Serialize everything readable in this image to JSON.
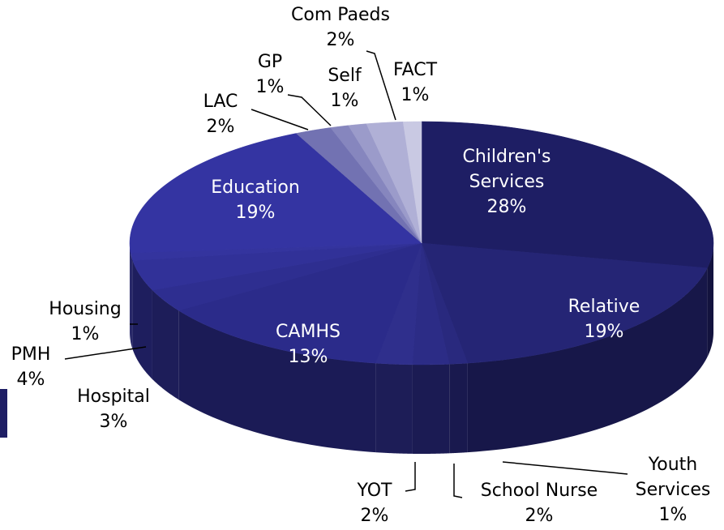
{
  "chart_data": {
    "type": "pie",
    "categories": [
      "Children's Services",
      "Relative",
      "Youth Services",
      "School Nurse",
      "YOT",
      "CAMHS",
      "Hospital",
      "PMH",
      "Housing",
      "Education",
      "LAC",
      "GP",
      "Self",
      "Com Paeds",
      "FACT"
    ],
    "values": [
      28,
      19,
      1,
      2,
      2,
      13,
      3,
      4,
      1,
      19,
      2,
      1,
      1,
      2,
      1
    ],
    "value_labels": [
      "28%",
      "19%",
      "1%",
      "2%",
      "2%",
      "13%",
      "3%",
      "4%",
      "1%",
      "19%",
      "2%",
      "1%",
      "1%",
      "2%",
      "1%"
    ],
    "colors": [
      "#1e1e64",
      "#252575",
      "#29297e",
      "#2c2c86",
      "#2f2f8c",
      "#2b2b8a",
      "#2e2e90",
      "#313198",
      "#34349e",
      "#3434a2",
      "#7272b2",
      "#8686be",
      "#9b9bca",
      "#b0b0d6",
      "#c9c9e3"
    ]
  }
}
